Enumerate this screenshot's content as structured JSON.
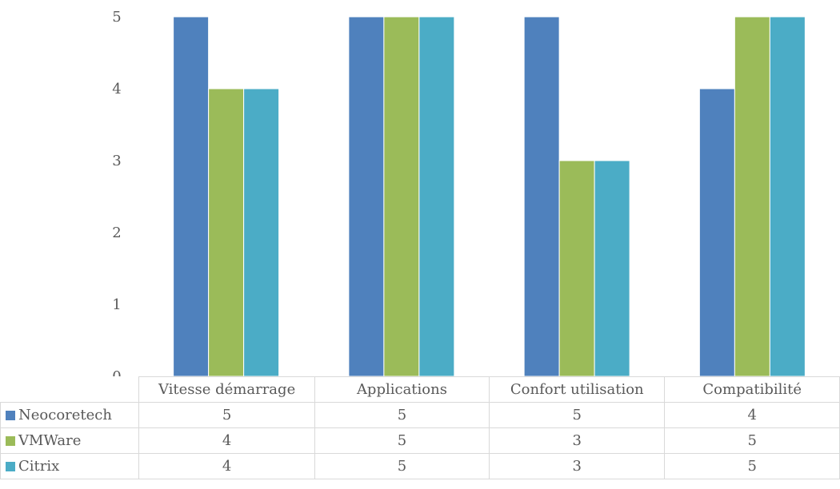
{
  "chart_data": {
    "type": "bar",
    "categories": [
      "Vitesse démarrage",
      "Applications",
      "Confort utilisation",
      "Compatibilité"
    ],
    "series": [
      {
        "name": "Neocoretech",
        "color": "#4f81bd",
        "values": [
          5,
          5,
          5,
          4
        ]
      },
      {
        "name": "VMWare",
        "color": "#9bbb59",
        "values": [
          4,
          5,
          3,
          5
        ]
      },
      {
        "name": "Citrix",
        "color": "#4bacc6",
        "values": [
          4,
          5,
          3,
          5
        ]
      }
    ],
    "ylim": [
      0,
      5
    ],
    "yticks": [
      "0",
      "1",
      "2",
      "3",
      "4",
      "5"
    ],
    "grid": false,
    "legend": "data-table"
  }
}
